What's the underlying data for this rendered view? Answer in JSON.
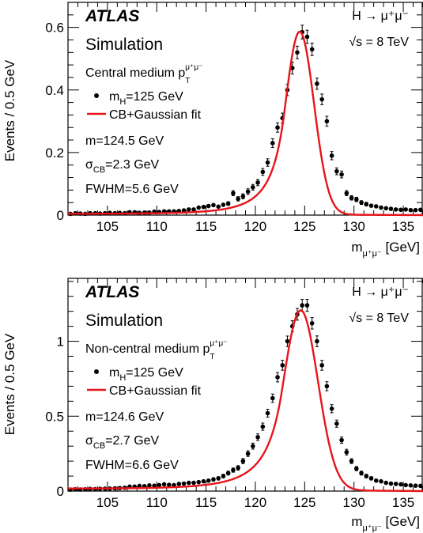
{
  "colors": {
    "fit": "#e8141a",
    "points": "#000000",
    "frame": "#000000",
    "background": "#ffffff"
  },
  "chart_data": [
    {
      "type": "scatter",
      "experiment": "ATLAS",
      "label": "Simulation",
      "process": "H → μ⁺μ⁻",
      "energy": "√s = 8 TeV",
      "category": "Central medium p",
      "category_sup": "μ⁺μ⁻",
      "category_sub": "T",
      "legend": {
        "points_label": "m",
        "points_sub": "H",
        "points_rest": "=125 GeV",
        "line_label": "CB+Gaussian fit",
        "position": "left"
      },
      "fit_results": {
        "mean": "m=124.5 GeV",
        "sigma_prefix": "σ",
        "sigma_sub": "CB",
        "sigma_rest": "=2.3 GeV",
        "fwhm": "FWHM=5.6 GeV"
      },
      "xlabel": "m",
      "xlabel_sub": "μ⁺μ⁻",
      "xlabel_unit": " [GeV]",
      "ylabel": "Events / 0.5 GeV",
      "xlim": [
        101,
        137
      ],
      "ylim": [
        0,
        0.68
      ],
      "x_ticks": [
        105,
        110,
        115,
        120,
        125,
        130,
        135
      ],
      "y_ticks": [
        0,
        0.2,
        0.4,
        0.6
      ],
      "y_tick_labels": [
        "0",
        "0.2",
        "0.4",
        "0.6"
      ],
      "fit": {
        "peak": 0.585,
        "mean": 124.5,
        "sigma": 1.45
      },
      "series": [
        {
          "x": [
            101.25,
            101.75,
            102.25,
            102.75,
            103.25,
            103.75,
            104.25,
            104.75,
            105.25,
            105.75,
            106.25,
            106.75,
            107.25,
            107.75,
            108.25,
            108.75,
            109.25,
            109.75,
            110.25,
            110.75,
            111.25,
            111.75,
            112.25,
            112.75,
            113.25,
            113.75,
            114.25,
            114.75,
            115.25,
            115.75,
            116.25,
            116.75,
            117.25,
            117.75,
            118.25,
            118.75,
            119.25,
            119.75,
            120.25,
            120.75,
            121.25,
            121.75,
            122.25,
            122.75,
            123.25,
            123.75,
            124.25,
            124.75,
            125.25,
            125.75,
            126.25,
            126.75,
            127.25,
            127.75,
            128.25,
            128.75,
            129.25,
            129.75,
            130.25,
            130.75,
            131.25,
            131.75,
            132.25,
            132.75,
            133.25,
            133.75,
            134.25,
            134.75,
            135.25,
            135.75,
            136.25,
            136.75
          ],
          "y": [
            0.004,
            0.006,
            0.005,
            0.004,
            0.006,
            0.006,
            0.005,
            0.006,
            0.007,
            0.006,
            0.007,
            0.006,
            0.009,
            0.009,
            0.007,
            0.008,
            0.008,
            0.011,
            0.01,
            0.012,
            0.012,
            0.012,
            0.013,
            0.015,
            0.018,
            0.018,
            0.024,
            0.026,
            0.029,
            0.032,
            0.027,
            0.033,
            0.037,
            0.07,
            0.052,
            0.06,
            0.075,
            0.089,
            0.104,
            0.138,
            0.168,
            0.23,
            0.28,
            0.31,
            0.4,
            0.47,
            0.52,
            0.585,
            0.57,
            0.53,
            0.42,
            0.37,
            0.3,
            0.19,
            0.14,
            0.13,
            0.07,
            0.055,
            0.05,
            0.04,
            0.035,
            0.03,
            0.028,
            0.024,
            0.022,
            0.02,
            0.018,
            0.017,
            0.018,
            0.016,
            0.016,
            0.017
          ],
          "err": [
            0.003,
            0.003,
            0.003,
            0.003,
            0.003,
            0.003,
            0.003,
            0.003,
            0.003,
            0.003,
            0.003,
            0.003,
            0.003,
            0.003,
            0.003,
            0.003,
            0.003,
            0.004,
            0.004,
            0.004,
            0.004,
            0.004,
            0.004,
            0.004,
            0.004,
            0.004,
            0.005,
            0.005,
            0.005,
            0.005,
            0.005,
            0.005,
            0.006,
            0.008,
            0.007,
            0.008,
            0.009,
            0.009,
            0.01,
            0.011,
            0.012,
            0.014,
            0.015,
            0.016,
            0.018,
            0.019,
            0.02,
            0.022,
            0.021,
            0.02,
            0.018,
            0.017,
            0.016,
            0.013,
            0.011,
            0.011,
            0.008,
            0.007,
            0.007,
            0.006,
            0.006,
            0.005,
            0.005,
            0.005,
            0.005,
            0.004,
            0.004,
            0.004,
            0.004,
            0.004,
            0.004,
            0.004
          ]
        }
      ]
    },
    {
      "type": "scatter",
      "experiment": "ATLAS",
      "label": "Simulation",
      "process": "H → μ⁺μ⁻",
      "energy": "√s = 8 TeV",
      "category": "Non-central medium p",
      "category_sup": "μ⁺μ⁻",
      "category_sub": "T",
      "legend": {
        "points_label": "m",
        "points_sub": "H",
        "points_rest": "=125 GeV",
        "line_label": "CB+Gaussian fit",
        "position": "left"
      },
      "fit_results": {
        "mean": "m=124.6 GeV",
        "sigma_prefix": "σ",
        "sigma_sub": "CB",
        "sigma_rest": "=2.7 GeV",
        "fwhm": "FWHM=6.6 GeV"
      },
      "xlabel": "m",
      "xlabel_sub": "μ⁺μ⁻",
      "xlabel_unit": " [GeV]",
      "ylabel": "Events / 0.5 GeV",
      "xlim": [
        101,
        137
      ],
      "ylim": [
        0,
        1.42
      ],
      "x_ticks": [
        105,
        110,
        115,
        120,
        125,
        130,
        135
      ],
      "y_ticks": [
        0,
        0.5,
        1
      ],
      "y_tick_labels": [
        "0",
        "0.5",
        "1"
      ],
      "fit": {
        "peak": 1.2,
        "mean": 124.6,
        "sigma": 1.75
      },
      "series": [
        {
          "x": [
            101.25,
            101.75,
            102.25,
            102.75,
            103.25,
            103.75,
            104.25,
            104.75,
            105.25,
            105.75,
            106.25,
            106.75,
            107.25,
            107.75,
            108.25,
            108.75,
            109.25,
            109.75,
            110.25,
            110.75,
            111.25,
            111.75,
            112.25,
            112.75,
            113.25,
            113.75,
            114.25,
            114.75,
            115.25,
            115.75,
            116.25,
            116.75,
            117.25,
            117.75,
            118.25,
            118.75,
            119.25,
            119.75,
            120.25,
            120.75,
            121.25,
            121.75,
            122.25,
            122.75,
            123.25,
            123.75,
            124.25,
            124.75,
            125.25,
            125.75,
            126.25,
            126.75,
            127.25,
            127.75,
            128.25,
            128.75,
            129.25,
            129.75,
            130.25,
            130.75,
            131.25,
            131.75,
            132.25,
            132.75,
            133.25,
            133.75,
            134.25,
            134.75,
            135.25,
            135.75,
            136.25,
            136.75
          ],
          "y": [
            0.01,
            0.012,
            0.011,
            0.012,
            0.014,
            0.013,
            0.015,
            0.016,
            0.017,
            0.018,
            0.02,
            0.022,
            0.03,
            0.03,
            0.035,
            0.033,
            0.038,
            0.036,
            0.04,
            0.045,
            0.042,
            0.04,
            0.048,
            0.05,
            0.055,
            0.055,
            0.06,
            0.065,
            0.07,
            0.078,
            0.085,
            0.1,
            0.12,
            0.14,
            0.155,
            0.2,
            0.25,
            0.3,
            0.36,
            0.43,
            0.52,
            0.62,
            0.76,
            0.84,
            1.0,
            1.1,
            1.18,
            1.24,
            1.24,
            1.12,
            1.0,
            0.84,
            0.7,
            0.55,
            0.45,
            0.34,
            0.26,
            0.2,
            0.15,
            0.12,
            0.1,
            0.085,
            0.07,
            0.065,
            0.055,
            0.05,
            0.048,
            0.045,
            0.04,
            0.038,
            0.036,
            0.035
          ],
          "err": [
            0.005,
            0.005,
            0.005,
            0.005,
            0.005,
            0.005,
            0.005,
            0.005,
            0.005,
            0.005,
            0.006,
            0.006,
            0.007,
            0.007,
            0.007,
            0.007,
            0.008,
            0.008,
            0.008,
            0.008,
            0.008,
            0.008,
            0.009,
            0.009,
            0.009,
            0.009,
            0.01,
            0.01,
            0.01,
            0.011,
            0.011,
            0.012,
            0.013,
            0.014,
            0.015,
            0.017,
            0.019,
            0.02,
            0.022,
            0.024,
            0.026,
            0.028,
            0.031,
            0.033,
            0.035,
            0.037,
            0.039,
            0.04,
            0.04,
            0.038,
            0.036,
            0.033,
            0.03,
            0.027,
            0.024,
            0.021,
            0.019,
            0.016,
            0.014,
            0.013,
            0.012,
            0.011,
            0.01,
            0.01,
            0.009,
            0.009,
            0.009,
            0.008,
            0.008,
            0.008,
            0.008,
            0.008
          ]
        }
      ]
    }
  ]
}
